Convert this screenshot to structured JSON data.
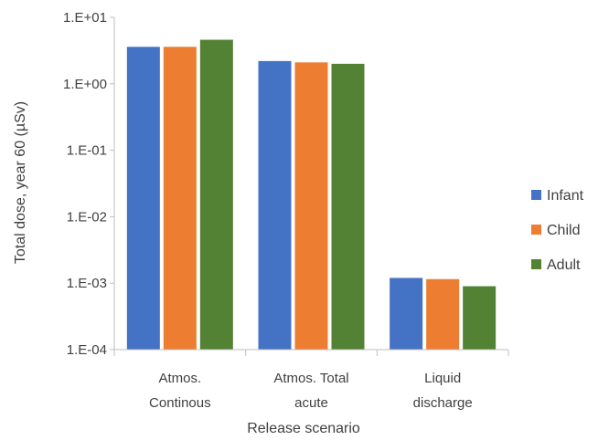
{
  "chart_data": {
    "type": "bar",
    "title": "",
    "xlabel": "Release scenario",
    "ylabel": "Total dose, year 60 (µSv)",
    "yscale": "log",
    "ylim": [
      0.0001,
      10
    ],
    "yticks": [
      {
        "value": 10,
        "label": "1.E+01"
      },
      {
        "value": 1,
        "label": "1.E+00"
      },
      {
        "value": 0.1,
        "label": "1.E-01"
      },
      {
        "value": 0.01,
        "label": "1.E-02"
      },
      {
        "value": 0.001,
        "label": "1.E-03"
      },
      {
        "value": 0.0001,
        "label": "1.E-04"
      }
    ],
    "categories": [
      {
        "line1": "Atmos.",
        "line2": "Continous"
      },
      {
        "line1": "Atmos. Total",
        "line2": "acute"
      },
      {
        "line1": "Liquid",
        "line2": "discharge"
      }
    ],
    "series": [
      {
        "name": "Infant",
        "color": "#4472C4",
        "values": [
          3.6,
          2.2,
          0.0012
        ]
      },
      {
        "name": "Child",
        "color": "#ED7D31",
        "values": [
          3.6,
          2.1,
          0.00115
        ]
      },
      {
        "name": "Adult",
        "color": "#548235",
        "values": [
          4.6,
          2.0,
          0.0009
        ]
      }
    ],
    "grid": false,
    "legend_position": "right"
  }
}
